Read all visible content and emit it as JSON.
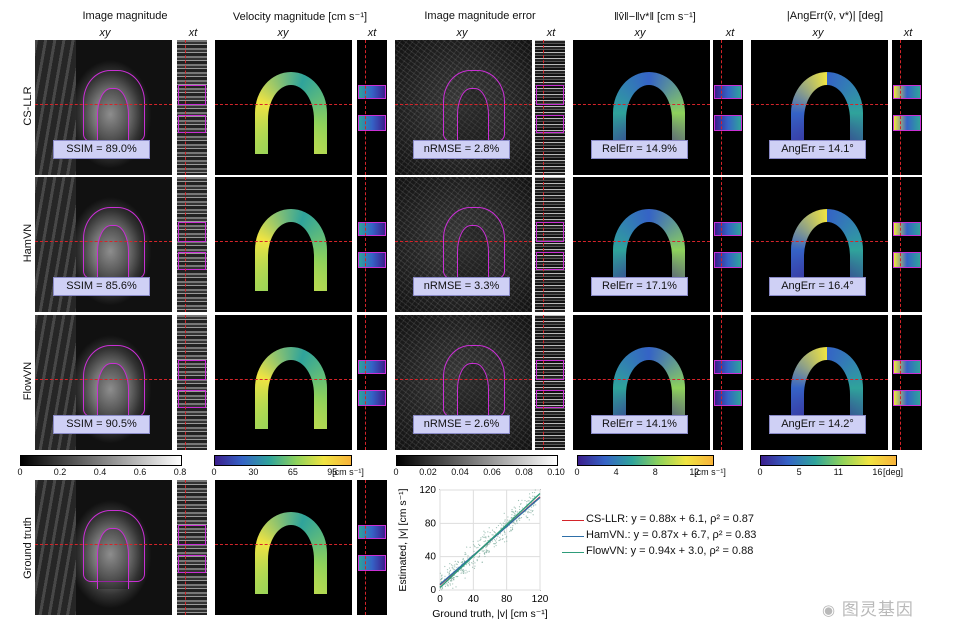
{
  "columns": [
    {
      "title": "Image magnitude",
      "sub_xy": "xy",
      "sub_xt": "xt"
    },
    {
      "title": "Velocity magnitude [cm s⁻¹]",
      "sub_xy": "xy",
      "sub_xt": "xt"
    },
    {
      "title": "Image magnitude error",
      "sub_xy": "xy",
      "sub_xt": "xt"
    },
    {
      "title": "‖v̂‖−‖v*‖ [cm s⁻¹]",
      "sub_xy": "xy",
      "sub_xt": "xt"
    },
    {
      "title": "|AngErr(v̂, v*)| [deg]",
      "sub_xy": "xy",
      "sub_xt": "xt"
    }
  ],
  "rows": [
    {
      "label": "CS-LLR",
      "ssim": "SSIM = 89.0%",
      "nrmse": "nRMSE = 2.8%",
      "relerr": "RelErr = 14.9%",
      "angerr": "AngErr = 14.1°"
    },
    {
      "label": "HamVN",
      "ssim": "SSIM = 85.6%",
      "nrmse": "nRMSE = 3.3%",
      "relerr": "RelErr = 17.1%",
      "angerr": "AngErr = 16.4°"
    },
    {
      "label": "FlowVN",
      "ssim": "SSIM = 90.5%",
      "nrmse": "nRMSE = 2.6%",
      "relerr": "RelErr = 14.1%",
      "angerr": "AngErr = 14.2°"
    }
  ],
  "ground_truth_label": "Ground truth",
  "colorbars": [
    {
      "ticks": [
        "0",
        "0.2",
        "0.4",
        "0.6",
        "0.8"
      ],
      "unit": "",
      "colors": [
        "#000000",
        "#ffffff"
      ]
    },
    {
      "ticks": [
        "0",
        "30",
        "65",
        "95"
      ],
      "unit": "[cm s⁻¹]",
      "colors": [
        "#3b1e8c",
        "#3563c6",
        "#2fa39b",
        "#8ed25b",
        "#f0e442",
        "#f8b33a"
      ]
    },
    {
      "ticks": [
        "0",
        "0.02",
        "0.04",
        "0.06",
        "0.08",
        "0.10"
      ],
      "unit": "",
      "colors": [
        "#000000",
        "#ffffff"
      ]
    },
    {
      "ticks": [
        "0",
        "4",
        "8",
        "12"
      ],
      "unit": "[cm s⁻¹]",
      "colors": [
        "#3b1e8c",
        "#3563c6",
        "#2fa39b",
        "#8ed25b",
        "#f0e442",
        "#f8b33a"
      ]
    },
    {
      "ticks": [
        "0",
        "5",
        "11",
        "16"
      ],
      "unit": "[deg]",
      "colors": [
        "#3b1e8c",
        "#3563c6",
        "#2fa39b",
        "#8ed25b",
        "#f0e442",
        "#f8b33a"
      ]
    }
  ],
  "chart_data": {
    "type": "scatter",
    "xlabel": "Ground truth, |v| [cm s⁻¹]",
    "ylabel": "Estimated, |v| [cm s⁻¹]",
    "xlim": [
      0,
      120
    ],
    "ylim": [
      0,
      120
    ],
    "xticks": [
      "0",
      "40",
      "80",
      "120"
    ],
    "yticks": [
      "0",
      "40",
      "80",
      "120"
    ],
    "grid": true,
    "series": [
      {
        "name": "CS-LLR",
        "slope": 0.88,
        "intercept": 6.1,
        "rho2": 0.87,
        "color": "#d4242a",
        "legend": "CS-LLR: y = 0.88x + 6.1, ρ² = 0.87"
      },
      {
        "name": "HamVN",
        "slope": 0.87,
        "intercept": 6.7,
        "rho2": 0.83,
        "color": "#2e6fa8",
        "legend": "HamVN.: y = 0.87x + 6.7, ρ² = 0.83"
      },
      {
        "name": "FlowVN",
        "slope": 0.94,
        "intercept": 3.0,
        "rho2": 0.88,
        "color": "#2e9c7a",
        "legend": "FlowVN: y = 0.94x + 3.0, ρ² = 0.88"
      }
    ]
  },
  "watermark": "图灵基因"
}
